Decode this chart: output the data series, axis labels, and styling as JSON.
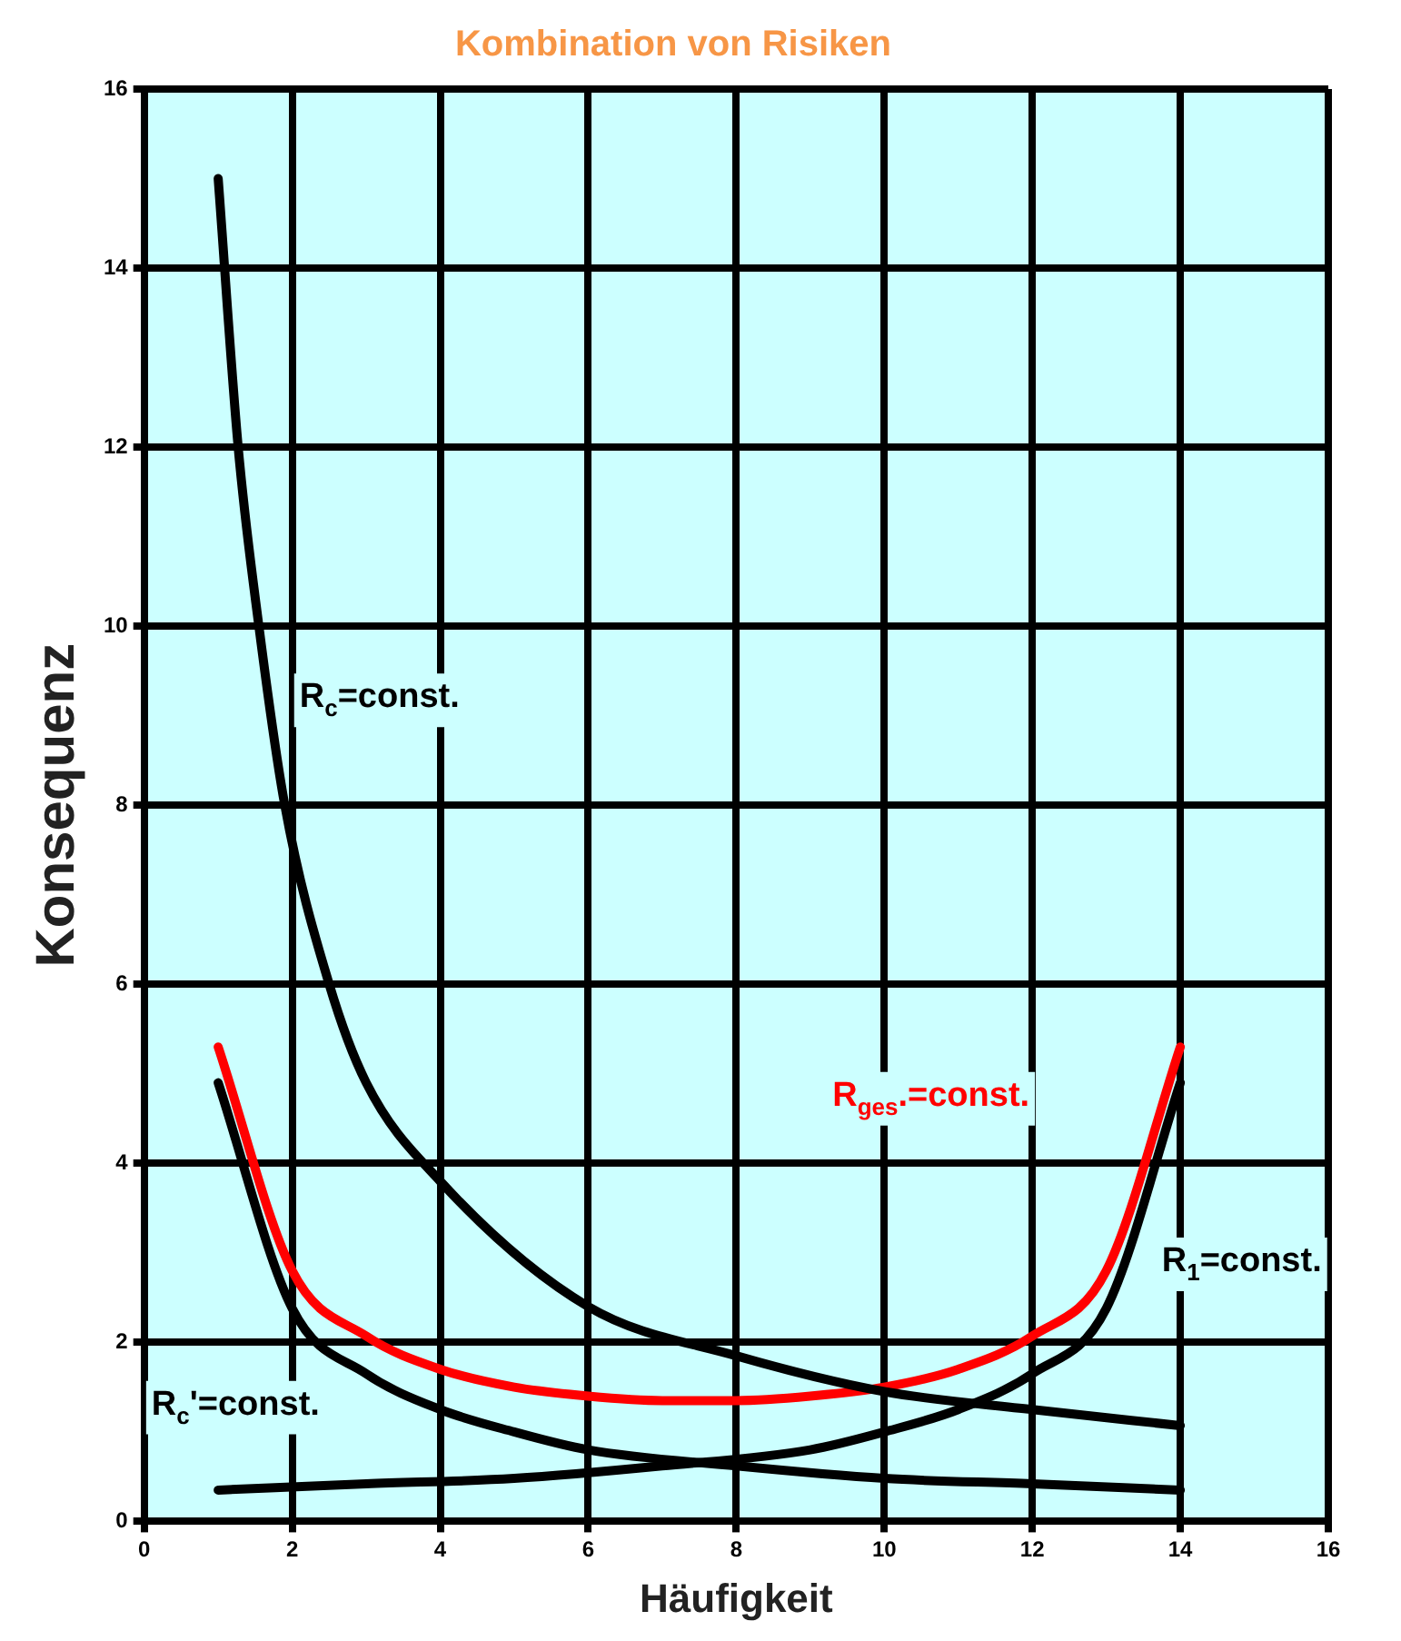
{
  "chart_data": {
    "type": "line",
    "title": "Kombination von Risiken",
    "xlabel": "Häufigkeit",
    "ylabel": "Konsequenz",
    "xlim": [
      0,
      16
    ],
    "xticks": [
      0,
      2,
      4,
      6,
      8,
      10,
      12,
      14,
      16
    ],
    "ylim": [
      0,
      16
    ],
    "yticks": [
      0,
      2,
      4,
      6,
      8,
      10,
      12,
      14,
      16
    ],
    "grid": true,
    "legend": false,
    "marker": "none",
    "line_style": "solid",
    "series": [
      {
        "color": "#000000",
        "x": [
          1,
          1.27,
          1.55,
          1.9,
          2.5,
          3,
          4,
          6,
          8,
          10,
          12,
          14
        ],
        "values": [
          15,
          12,
          10,
          8,
          6,
          4.9,
          3.8,
          2.4,
          1.85,
          1.45,
          1.25,
          1.07
        ]
      },
      {
        "color": "#000000",
        "x": [
          1,
          2,
          3,
          4,
          5,
          6,
          8,
          10,
          12,
          14
        ],
        "values": [
          4.9,
          2.38,
          1.65,
          1.25,
          1,
          0.8,
          0.62,
          0.48,
          0.42,
          0.35
        ]
      },
      {
        "color": "#000000",
        "x": [
          1,
          3,
          5,
          7,
          9,
          10,
          11,
          12,
          13,
          14
        ],
        "values": [
          0.35,
          0.42,
          0.48,
          0.62,
          0.8,
          1,
          1.25,
          1.65,
          2.38,
          4.9
        ]
      },
      {
        "color": "#ff0000",
        "x": [
          1,
          2,
          3,
          4,
          5,
          6,
          7,
          8,
          9,
          10,
          11,
          12,
          13,
          14
        ],
        "values": [
          5.3,
          2.8,
          2.07,
          1.7,
          1.5,
          1.4,
          1.35,
          1.35,
          1.4,
          1.5,
          1.7,
          2.07,
          2.8,
          5.3
        ]
      }
    ],
    "annotations": [
      "R$_{c}$=const.",
      "R$_{ges}$.=const.",
      "R$_{1}$=const.",
      "R$_{c}$'=const."
    ]
  }
}
